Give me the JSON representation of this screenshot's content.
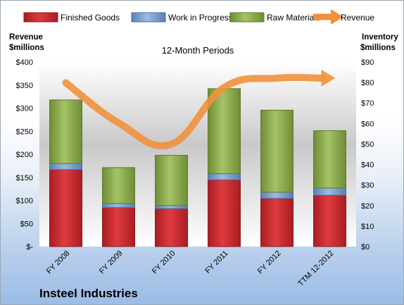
{
  "chart_data": {
    "type": "bar",
    "subtitle": "12-Month Periods",
    "company": "Insteel Industries",
    "left_axis_title": [
      "Revenue",
      "$millions"
    ],
    "right_axis_title": [
      "Inventory",
      "$millions"
    ],
    "categories": [
      "FY 2008",
      "FY 2009",
      "FY 2010",
      "FY 2011",
      "FY 2012",
      "TTM 12-2012"
    ],
    "stacked": true,
    "series": [
      {
        "name": "Finished Goods",
        "axis": "right",
        "color": "#c8262b",
        "values": [
          37.5,
          19,
          18.5,
          32.5,
          23.5,
          25
        ]
      },
      {
        "name": "Work in Progress",
        "axis": "right",
        "color": "#6d94c9",
        "values": [
          3,
          2,
          1.5,
          3,
          3,
          3.5
        ]
      },
      {
        "name": "Raw Materials",
        "axis": "right",
        "color": "#8fb04f",
        "values": [
          31,
          17.5,
          24.5,
          41.5,
          40,
          28
        ]
      }
    ],
    "line_series": {
      "name": "Revenue",
      "axis": "left",
      "color": "#f0913c",
      "values": [
        355,
        268,
        222,
        345,
        365,
        365
      ]
    },
    "left_axis": {
      "min": 0,
      "max": 400,
      "ticks": [
        "$-",
        "$50",
        "$100",
        "$150",
        "$200",
        "$250",
        "$300",
        "$350",
        "$400"
      ]
    },
    "right_axis": {
      "min": 0,
      "max": 90,
      "ticks": [
        "$0",
        "$10",
        "$20",
        "$30",
        "$40",
        "$50",
        "$60",
        "$70",
        "$80",
        "$90"
      ]
    },
    "legend_position": "top"
  }
}
